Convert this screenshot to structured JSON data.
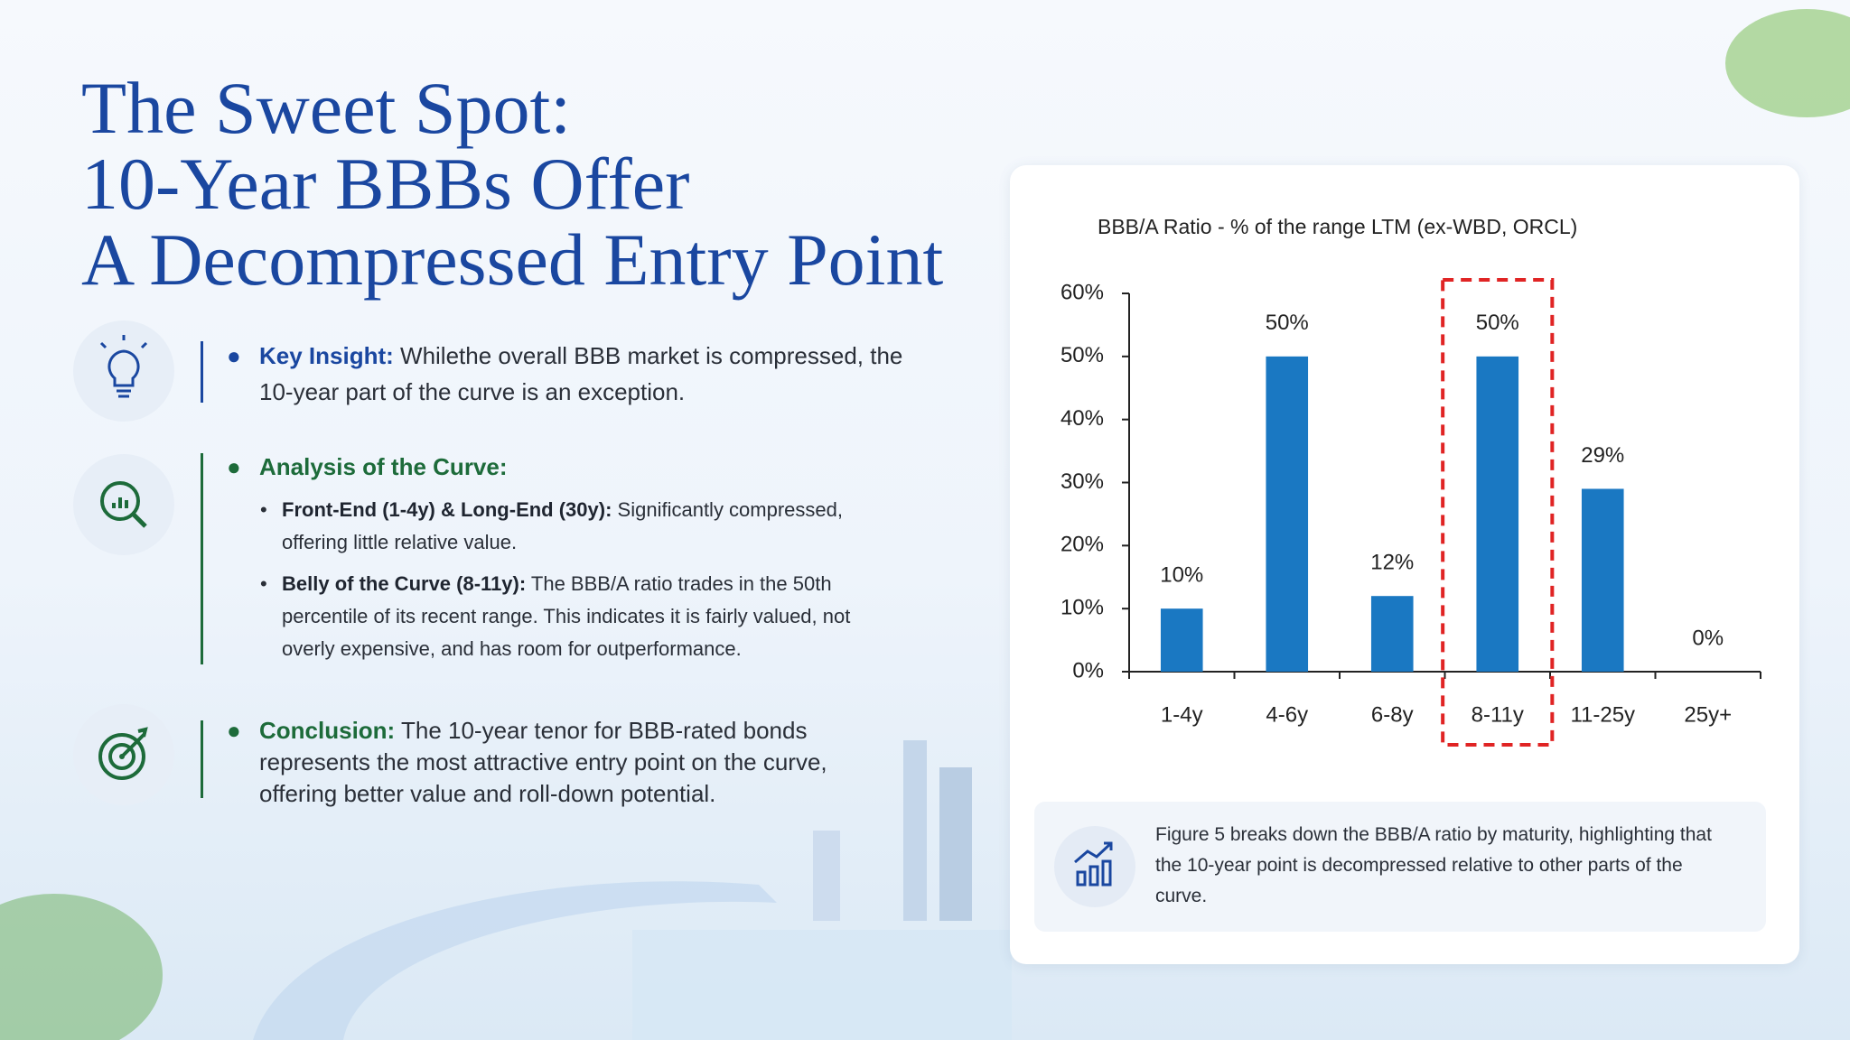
{
  "header": {
    "title_lines": [
      "The Sweet Spot:",
      "10-Year BBBs Offer",
      "A Decompressed Entry Point"
    ]
  },
  "points": [
    {
      "label": "Key Insight:",
      "text": "Whilethe overall BBB market is compressed, the 10-year part of the curve is an exception."
    },
    {
      "label": "Analysis of the Curve:",
      "items": [
        {
          "label": "Front-End (1-4y) & Long-End (30y):",
          "text": "Significantly compressed, offering little relative value."
        },
        {
          "label": "Belly of the Curve (8-11y):",
          "text": "The BBB/A ratio trades in the 50th percentile of its recent range. This indicates it is fairly valued, not overly expensive, and has room for outperformance."
        }
      ]
    },
    {
      "label": "Conclusion:",
      "text": "The 10-year tenor for BBB-rated bonds represents the most attractive entry point on the curve, offering better value and roll-down potential."
    }
  ],
  "chart_data": {
    "type": "bar",
    "title": "BBB/A Ratio - % of the range LTM (ex-WBD, ORCL)",
    "categories": [
      "1-4y",
      "4-6y",
      "6-8y",
      "8-11y",
      "11-25y",
      "25y+"
    ],
    "values": [
      10,
      50,
      12,
      50,
      29,
      0
    ],
    "value_labels": [
      "10%",
      "50%",
      "12%",
      "50%",
      "29%",
      "0%"
    ],
    "color": "#1a78c2",
    "ylim": [
      0,
      60
    ],
    "yticks": [
      {
        "value": 0,
        "label": "0%"
      },
      {
        "value": 10,
        "label": "10%"
      },
      {
        "value": 20,
        "label": "20%"
      },
      {
        "value": 30,
        "label": "30%"
      },
      {
        "value": 40,
        "label": "40%"
      },
      {
        "value": 50,
        "label": "50%"
      },
      {
        "value": 60,
        "label": "60%"
      }
    ],
    "grid": false,
    "highlight": 3,
    "highlight_color": "#e02424"
  },
  "caption": "Figure 5 breaks down the BBB/A ratio by maturity, highlighting that the 10-year point is decompressed relative to other parts of the curve."
}
